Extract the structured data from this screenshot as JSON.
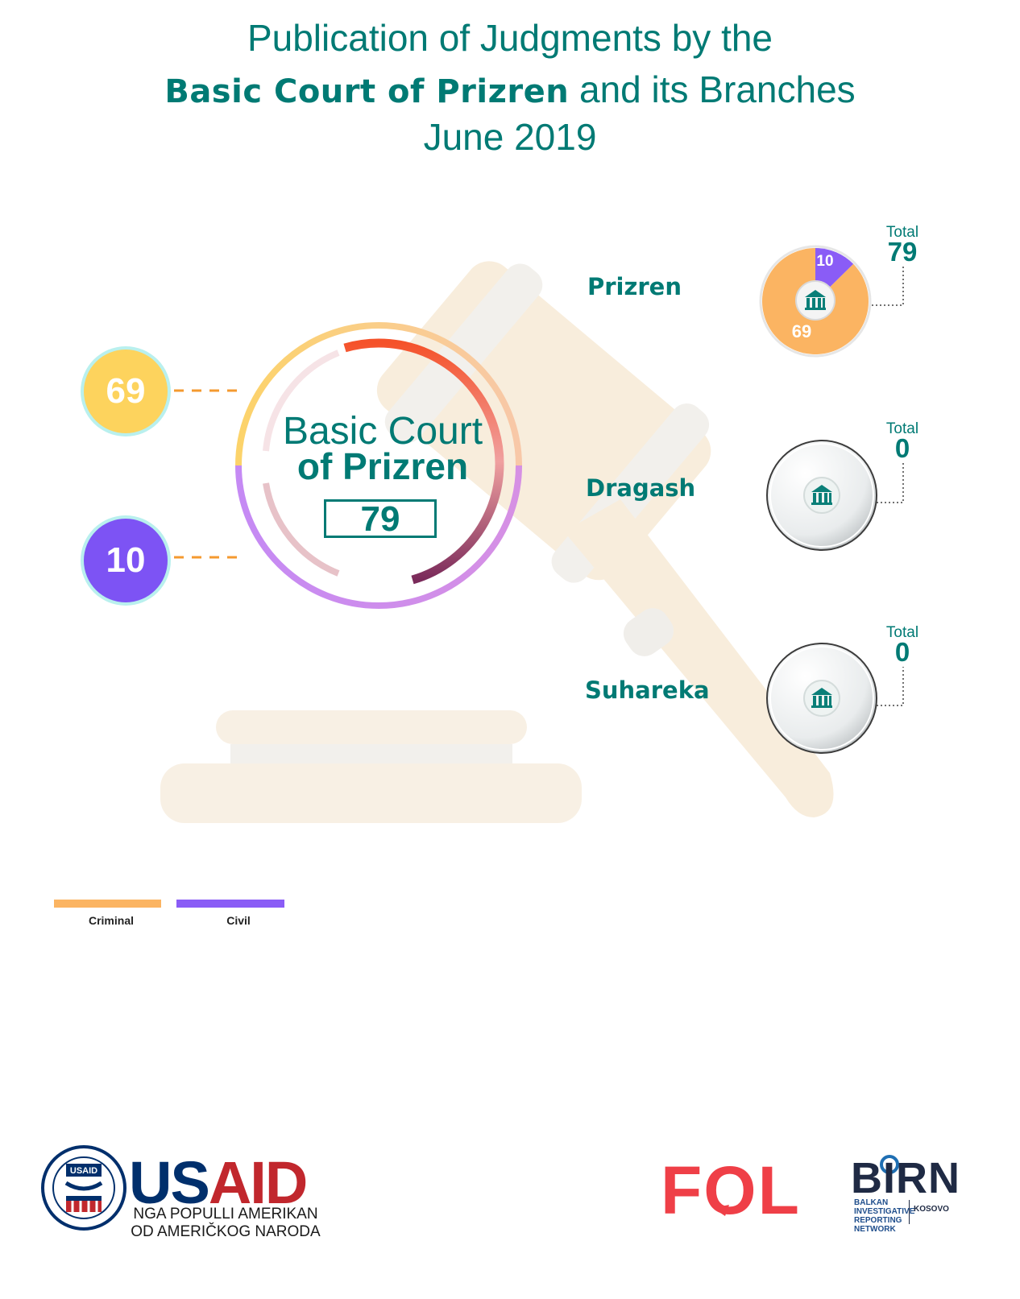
{
  "title": {
    "line1": "Publication of Judgments by the",
    "line2_bold": "Basic Court of Prizren",
    "line2_rest": " and its Branches",
    "line3": "June 2019"
  },
  "summary": {
    "court_line1": "Basic Court",
    "court_line2": "of Prizren",
    "total": "79",
    "criminal": "69",
    "civil": "10"
  },
  "branches": [
    {
      "name": "Prizren",
      "total_label": "Total",
      "total": "79",
      "criminal_label": "69",
      "civil_label": "10"
    },
    {
      "name": "Dragash",
      "total_label": "Total",
      "total": "0"
    },
    {
      "name": "Suhareka",
      "total_label": "Total",
      "total": "0"
    }
  ],
  "legend": {
    "criminal": "Criminal",
    "civil": "Civil"
  },
  "colors": {
    "criminal": "#fbb462",
    "civil": "#8a5cf6",
    "teal": "#007a74",
    "criminal_bubble": "#fdd35d",
    "civil_bubble": "#7d53f4"
  },
  "logos": {
    "usaid_seal_text": "USAID",
    "usaid_word_1": "US",
    "usaid_word_2": "AID",
    "usaid_sub1": "NGA POPULLI AMERIKAN",
    "usaid_sub2": "OD AMERIČKOG NARODA",
    "fol": "FOL",
    "birn": "BIRN",
    "birn_sub": "BALKAN INVESTIGATIVE REPORTING NETWORK",
    "birn_kosovo": "KOSOVO"
  },
  "chart_data": {
    "type": "pie",
    "categories": [
      "Criminal",
      "Civil"
    ],
    "series": [
      {
        "name": "Prizren",
        "values": [
          69,
          10
        ],
        "total": 79
      },
      {
        "name": "Dragash",
        "values": [
          0,
          0
        ],
        "total": 0
      },
      {
        "name": "Suhareka",
        "values": [
          0,
          0
        ],
        "total": 0
      }
    ],
    "overall": {
      "total": 79,
      "criminal": 69,
      "civil": 10
    },
    "legend_placement": "bottom-left"
  }
}
